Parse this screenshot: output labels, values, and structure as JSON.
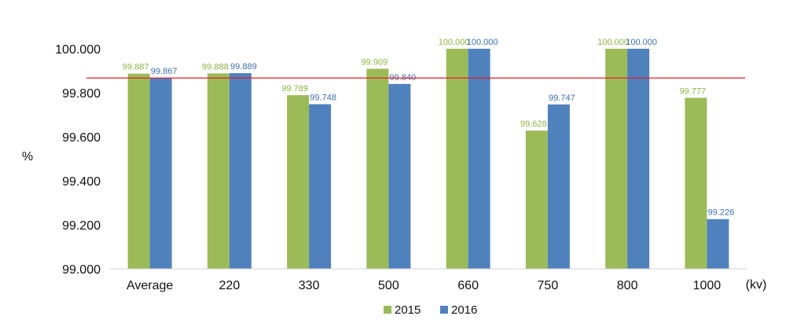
{
  "chart_data": {
    "type": "bar",
    "categories": [
      "Average",
      "220",
      "330",
      "500",
      "660",
      "750",
      "800",
      "1000"
    ],
    "series": [
      {
        "name": "2015",
        "values": [
          99.887,
          99.888,
          99.789,
          99.909,
          100.0,
          99.628,
          100.0,
          99.777
        ],
        "labels": [
          "99.887",
          "99.888",
          "99.789",
          "99.909",
          "100.000",
          "99.628",
          "100.000",
          "99.777"
        ],
        "color": "#9BBB59",
        "label_color": "#8DB441"
      },
      {
        "name": "2016",
        "values": [
          99.867,
          99.889,
          99.748,
          99.84,
          100.0,
          99.747,
          100.0,
          99.226
        ],
        "labels": [
          "99.867",
          "99.889",
          "99.748",
          "99.840",
          "100.000",
          "99.747",
          "100.000",
          "99.226"
        ],
        "color": "#4F81BD",
        "label_color": "#3C6FB0"
      }
    ],
    "ylim": [
      99.0,
      100.0
    ],
    "yticks": [
      "99.000",
      "99.200",
      "99.400",
      "99.600",
      "99.800",
      "100.000"
    ],
    "ylabel": "%",
    "xlabel": "(kv)",
    "reference_line": {
      "value": 99.867,
      "color": "#E0202A"
    },
    "legend_position": "bottom-center",
    "grid": false
  }
}
